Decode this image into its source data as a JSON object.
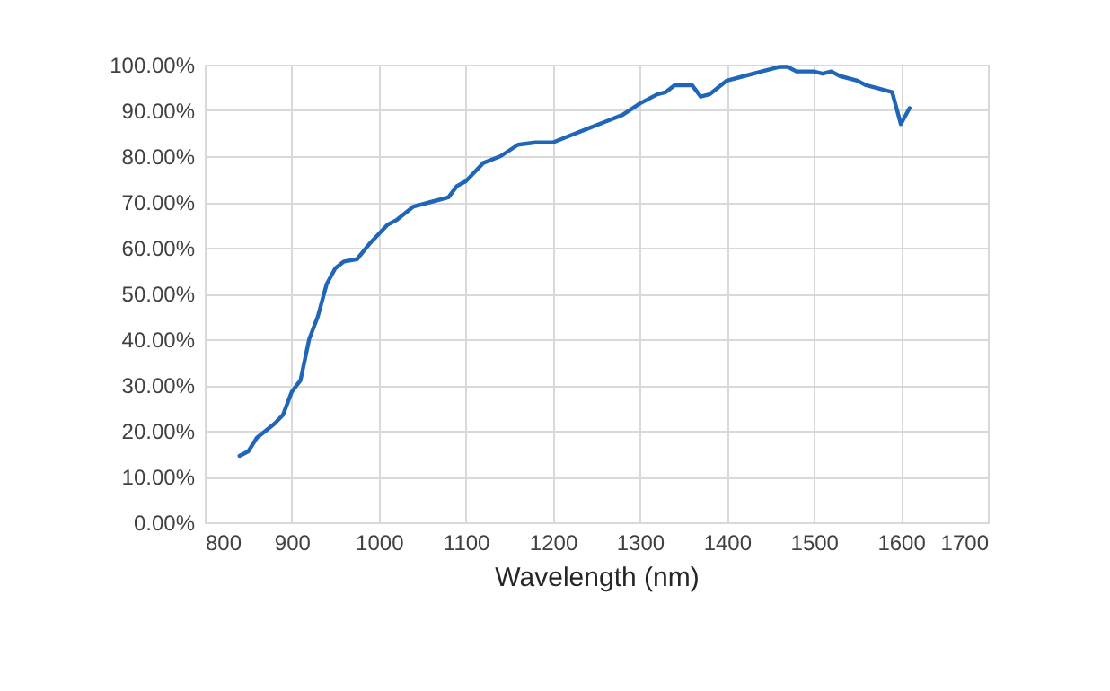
{
  "chart_data": {
    "type": "line",
    "xlabel": "Wavelength (nm)",
    "x": [
      840,
      850,
      860,
      880,
      890,
      900,
      910,
      920,
      930,
      940,
      950,
      960,
      975,
      990,
      1010,
      1020,
      1040,
      1060,
      1080,
      1090,
      1100,
      1120,
      1140,
      1160,
      1180,
      1200,
      1220,
      1240,
      1260,
      1280,
      1300,
      1320,
      1330,
      1340,
      1360,
      1370,
      1380,
      1400,
      1420,
      1440,
      1460,
      1470,
      1480,
      1500,
      1510,
      1520,
      1530,
      1550,
      1560,
      1590,
      1600,
      1610
    ],
    "series": [
      {
        "color": "#1f66b8",
        "values": [
          14.5,
          15.5,
          18.5,
          21.5,
          23.5,
          28.5,
          31,
          40,
          45,
          52,
          55.5,
          57,
          57.5,
          61,
          65,
          66,
          69,
          70,
          71,
          73.5,
          74.5,
          78.5,
          80,
          82.5,
          83,
          83,
          84.5,
          86,
          87.5,
          89,
          91.5,
          93.5,
          94,
          95.5,
          95.5,
          93,
          93.5,
          96.5,
          97.5,
          98.5,
          99.5,
          99.5,
          98.5,
          98.5,
          98,
          98.5,
          97.5,
          96.5,
          95.5,
          94,
          87,
          90.5
        ]
      }
    ],
    "xlim": [
      800,
      1700
    ],
    "xticks": [
      800,
      900,
      1000,
      1100,
      1200,
      1300,
      1400,
      1500,
      1600,
      1700
    ],
    "ylim": [
      0,
      100
    ],
    "yticks": [
      {
        "value": 0,
        "label": "0.00%"
      },
      {
        "value": 10,
        "label": "10.00%"
      },
      {
        "value": 20,
        "label": "20.00%"
      },
      {
        "value": 30,
        "label": "30.00%"
      },
      {
        "value": 40,
        "label": "40.00%"
      },
      {
        "value": 50,
        "label": "50.00%"
      },
      {
        "value": 60,
        "label": "60.00%"
      },
      {
        "value": 70,
        "label": "70.00%"
      },
      {
        "value": 80,
        "label": "80.00%"
      },
      {
        "value": 90,
        "label": "90.00%"
      },
      {
        "value": 100,
        "label": "100.00%"
      }
    ],
    "grid": true,
    "legend": false,
    "marker": "none",
    "line_style": "solid"
  }
}
